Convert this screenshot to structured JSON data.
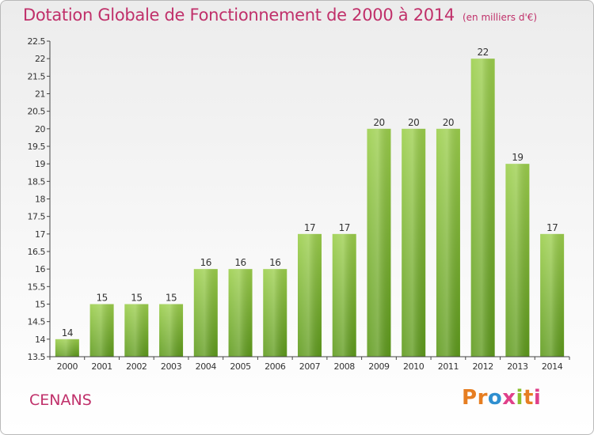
{
  "chart_data": {
    "type": "bar",
    "title": "Dotation Globale de Fonctionnement de 2000 à 2014",
    "unit_label": "(en milliers d'€)",
    "categories": [
      "2000",
      "2001",
      "2002",
      "2003",
      "2004",
      "2005",
      "2006",
      "2007",
      "2008",
      "2009",
      "2010",
      "2011",
      "2012",
      "2013",
      "2014"
    ],
    "values": [
      14,
      15,
      15,
      15,
      16,
      16,
      16,
      17,
      17,
      20,
      20,
      20,
      22,
      19,
      17
    ],
    "data_labels": [
      "14",
      "15",
      "15",
      "15",
      "16",
      "16",
      "16",
      "17",
      "17",
      "20",
      "20",
      "20",
      "22",
      "19",
      "17"
    ],
    "ylim": [
      13.5,
      22.5
    ],
    "yticks": [
      13.5,
      14,
      14.5,
      15,
      15.5,
      16,
      16.5,
      17,
      17.5,
      18,
      18.5,
      19,
      19.5,
      20,
      20.5,
      21,
      21.5,
      22,
      22.5
    ],
    "ytick_labels": [
      "13.5",
      "14",
      "14.5",
      "15",
      "15.5",
      "16",
      "16.5",
      "17",
      "17.5",
      "18",
      "18.5",
      "19",
      "19.5",
      "20",
      "20.5",
      "21",
      "21.5",
      "22",
      "22.5"
    ],
    "grid": false,
    "bar_color": "#8cc43c",
    "bar_color_dark": "#5e9a1c",
    "title_color": "#c0306a"
  },
  "footer": {
    "commune": "CENANS",
    "logo_letters": [
      "P",
      "r",
      "o",
      "x",
      "i",
      "t",
      "i"
    ]
  }
}
